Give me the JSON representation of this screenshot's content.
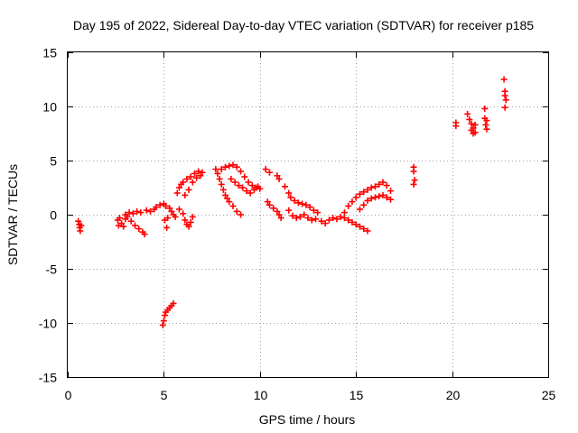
{
  "chart_data": {
    "type": "scatter",
    "title": "Day 195 of 2022, Sidereal Day-to-day VTEC variation (SDTVAR) for receiver p185",
    "xlabel": "GPS time / hours",
    "ylabel": "SDTVAR / TECUs",
    "xlim": [
      0,
      25
    ],
    "ylim": [
      -15,
      15
    ],
    "xticks": [
      0,
      5,
      10,
      15,
      20,
      25
    ],
    "yticks": [
      -15,
      -10,
      -5,
      0,
      5,
      10,
      15
    ],
    "x_tick_labels": [
      "0",
      "5",
      "10",
      "15",
      "20",
      "25"
    ],
    "y_tick_labels": [
      "-15",
      "-10",
      "-5",
      "0",
      "5",
      "10",
      "15"
    ],
    "grid": true,
    "marker": "plus",
    "color": "#ff0000",
    "series": [
      {
        "points": [
          [
            0.55,
            -0.6
          ],
          [
            0.6,
            -0.9
          ],
          [
            0.62,
            -1.2
          ],
          [
            0.65,
            -1.5
          ],
          [
            0.7,
            -1.0
          ],
          [
            2.6,
            -0.5
          ],
          [
            2.65,
            -1.0
          ],
          [
            2.7,
            -0.3
          ],
          [
            2.8,
            -0.8
          ],
          [
            2.9,
            -1.1
          ],
          [
            3.0,
            -0.4
          ],
          [
            3.0,
            0.0
          ],
          [
            3.1,
            -0.2
          ],
          [
            3.2,
            0.2
          ],
          [
            3.3,
            -0.6
          ],
          [
            3.4,
            0.1
          ],
          [
            3.5,
            -1.0
          ],
          [
            3.6,
            0.3
          ],
          [
            3.7,
            -1.3
          ],
          [
            3.8,
            0.2
          ],
          [
            3.9,
            -1.6
          ],
          [
            4.0,
            -1.8
          ],
          [
            4.1,
            0.4
          ],
          [
            4.3,
            0.3
          ],
          [
            4.5,
            0.5
          ],
          [
            4.6,
            0.7
          ],
          [
            4.8,
            0.9
          ],
          [
            5.0,
            1.0
          ],
          [
            5.1,
            0.8
          ],
          [
            5.2,
            -0.3
          ],
          [
            5.05,
            -0.5
          ],
          [
            5.15,
            -1.2
          ],
          [
            5.3,
            0.6
          ],
          [
            5.4,
            0.3
          ],
          [
            5.5,
            0.0
          ],
          [
            5.6,
            -0.2
          ],
          [
            5.8,
            0.5
          ],
          [
            6.0,
            0.1
          ],
          [
            6.1,
            -0.5
          ],
          [
            6.2,
            -0.9
          ],
          [
            6.3,
            -1.1
          ],
          [
            6.4,
            -0.7
          ],
          [
            6.5,
            -0.2
          ],
          [
            5.7,
            2.0
          ],
          [
            5.8,
            2.5
          ],
          [
            5.9,
            2.8
          ],
          [
            6.0,
            3.0
          ],
          [
            6.1,
            1.8
          ],
          [
            6.2,
            3.3
          ],
          [
            6.3,
            2.3
          ],
          [
            6.4,
            3.5
          ],
          [
            6.5,
            3.0
          ],
          [
            6.6,
            3.8
          ],
          [
            6.7,
            3.4
          ],
          [
            6.8,
            4.0
          ],
          [
            6.9,
            3.6
          ],
          [
            7.0,
            3.9
          ],
          [
            4.95,
            -10.2
          ],
          [
            5.0,
            -9.8
          ],
          [
            5.05,
            -9.3
          ],
          [
            5.1,
            -9.0
          ],
          [
            5.2,
            -8.8
          ],
          [
            5.3,
            -8.6
          ],
          [
            5.4,
            -8.4
          ],
          [
            5.5,
            -8.2
          ],
          [
            7.7,
            4.2
          ],
          [
            7.8,
            3.8
          ],
          [
            7.9,
            3.3
          ],
          [
            8.0,
            2.8
          ],
          [
            8.1,
            2.3
          ],
          [
            8.2,
            1.8
          ],
          [
            8.3,
            1.5
          ],
          [
            8.4,
            1.2
          ],
          [
            8.6,
            0.8
          ],
          [
            8.8,
            0.3
          ],
          [
            9.0,
            0.0
          ],
          [
            8.0,
            4.2
          ],
          [
            8.2,
            4.4
          ],
          [
            8.4,
            4.5
          ],
          [
            8.6,
            4.6
          ],
          [
            8.8,
            4.4
          ],
          [
            9.0,
            4.0
          ],
          [
            9.2,
            3.5
          ],
          [
            9.4,
            3.0
          ],
          [
            9.6,
            2.7
          ],
          [
            9.8,
            2.5
          ],
          [
            10.0,
            2.4
          ],
          [
            8.5,
            3.3
          ],
          [
            8.7,
            3.0
          ],
          [
            8.9,
            2.7
          ],
          [
            9.1,
            2.5
          ],
          [
            9.3,
            2.2
          ],
          [
            9.5,
            2.0
          ],
          [
            9.7,
            2.3
          ],
          [
            9.9,
            2.6
          ],
          [
            10.3,
            4.2
          ],
          [
            10.5,
            3.9
          ],
          [
            10.9,
            3.6
          ],
          [
            11.0,
            3.3
          ],
          [
            10.4,
            1.2
          ],
          [
            10.5,
            0.9
          ],
          [
            10.7,
            0.6
          ],
          [
            10.9,
            0.3
          ],
          [
            11.0,
            0.0
          ],
          [
            11.1,
            -0.3
          ],
          [
            11.3,
            2.6
          ],
          [
            11.5,
            2.0
          ],
          [
            11.6,
            1.6
          ],
          [
            11.8,
            1.3
          ],
          [
            12.0,
            1.1
          ],
          [
            12.2,
            1.0
          ],
          [
            12.4,
            0.9
          ],
          [
            12.6,
            0.7
          ],
          [
            12.8,
            0.4
          ],
          [
            13.0,
            0.2
          ],
          [
            11.5,
            0.4
          ],
          [
            11.7,
            -0.1
          ],
          [
            11.9,
            -0.3
          ],
          [
            12.1,
            -0.2
          ],
          [
            12.3,
            0.0
          ],
          [
            12.5,
            -0.3
          ],
          [
            12.7,
            -0.5
          ],
          [
            12.9,
            -0.4
          ],
          [
            13.2,
            -0.6
          ],
          [
            13.4,
            -0.8
          ],
          [
            13.6,
            -0.5
          ],
          [
            13.8,
            -0.3
          ],
          [
            14.0,
            -0.4
          ],
          [
            14.2,
            -0.2
          ],
          [
            14.4,
            -0.3
          ],
          [
            14.6,
            -0.5
          ],
          [
            14.8,
            -0.7
          ],
          [
            15.0,
            -0.9
          ],
          [
            15.2,
            -1.1
          ],
          [
            15.4,
            -1.3
          ],
          [
            15.6,
            -1.5
          ],
          [
            14.4,
            0.2
          ],
          [
            14.6,
            0.8
          ],
          [
            14.8,
            1.2
          ],
          [
            15.0,
            1.6
          ],
          [
            15.2,
            1.9
          ],
          [
            15.4,
            2.1
          ],
          [
            15.6,
            2.3
          ],
          [
            15.8,
            2.5
          ],
          [
            16.0,
            2.6
          ],
          [
            16.2,
            2.8
          ],
          [
            16.4,
            3.0
          ],
          [
            16.6,
            2.7
          ],
          [
            16.8,
            2.2
          ],
          [
            15.2,
            0.5
          ],
          [
            15.4,
            0.9
          ],
          [
            15.6,
            1.3
          ],
          [
            15.8,
            1.5
          ],
          [
            16.0,
            1.6
          ],
          [
            16.2,
            1.7
          ],
          [
            16.4,
            1.8
          ],
          [
            16.6,
            1.6
          ],
          [
            16.8,
            1.4
          ],
          [
            18.0,
            4.4
          ],
          [
            18.0,
            4.0
          ],
          [
            18.05,
            3.2
          ],
          [
            18.0,
            2.8
          ],
          [
            20.2,
            8.5
          ],
          [
            20.2,
            8.2
          ],
          [
            20.8,
            9.3
          ],
          [
            20.9,
            8.8
          ],
          [
            21.0,
            8.4
          ],
          [
            21.0,
            7.8
          ],
          [
            21.1,
            8.0
          ],
          [
            21.1,
            7.5
          ],
          [
            21.2,
            8.3
          ],
          [
            21.2,
            7.6
          ],
          [
            21.7,
            9.8
          ],
          [
            21.7,
            8.9
          ],
          [
            21.75,
            8.3
          ],
          [
            21.8,
            7.9
          ],
          [
            21.8,
            8.7
          ],
          [
            22.7,
            12.5
          ],
          [
            22.75,
            11.4
          ],
          [
            22.75,
            11.0
          ],
          [
            22.8,
            10.6
          ],
          [
            22.75,
            9.9
          ]
        ]
      }
    ]
  }
}
